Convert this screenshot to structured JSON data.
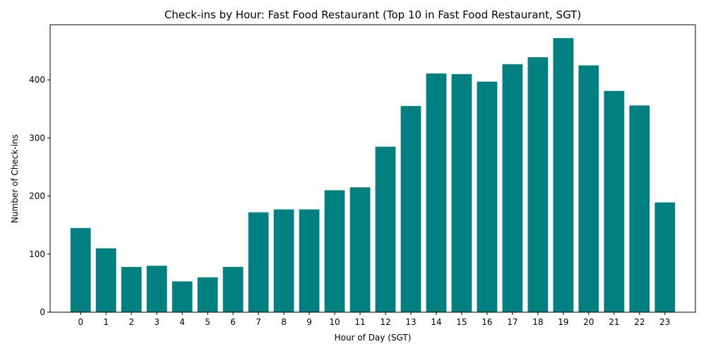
{
  "chart_data": {
    "type": "bar",
    "title": "Check-ins by Hour: Fast Food Restaurant (Top 10 in Fast Food Restaurant, SGT)",
    "xlabel": "Hour of Day (SGT)",
    "ylabel": "Number of Check-ins",
    "categories": [
      "0",
      "1",
      "2",
      "3",
      "4",
      "5",
      "6",
      "7",
      "8",
      "9",
      "10",
      "11",
      "12",
      "13",
      "14",
      "15",
      "16",
      "17",
      "18",
      "19",
      "20",
      "21",
      "22",
      "23"
    ],
    "values": [
      145,
      110,
      78,
      80,
      53,
      60,
      78,
      172,
      177,
      177,
      210,
      215,
      285,
      355,
      411,
      410,
      397,
      427,
      439,
      472,
      425,
      381,
      356,
      189
    ],
    "ylim": [
      0,
      495
    ],
    "yticks": [
      "0",
      "100",
      "200",
      "300",
      "400"
    ],
    "bar_color": "#008080",
    "grid": false,
    "legend": "none"
  }
}
